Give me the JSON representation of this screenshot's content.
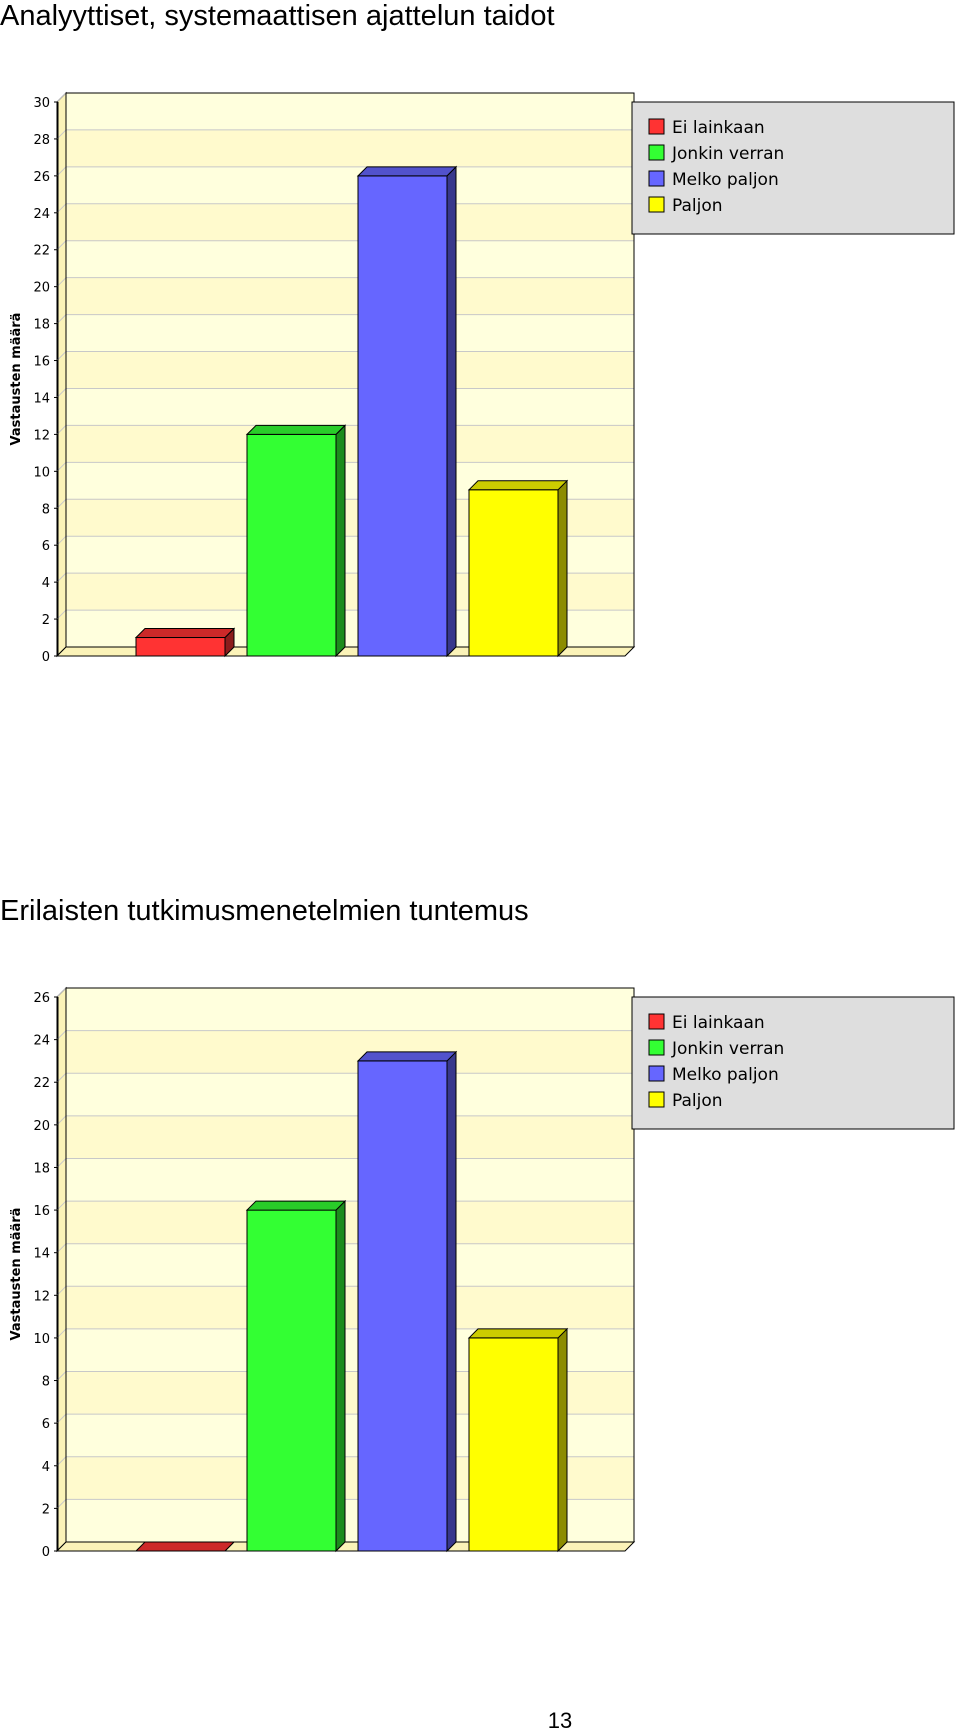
{
  "chart_data": [
    {
      "type": "bar",
      "title": "Analyyttiset, systemaattisen ajattelun taidot",
      "ylabel": "Vastausten määrä",
      "xlabel": "",
      "ylim": [
        0,
        30
      ],
      "yticks": [
        0,
        2,
        4,
        6,
        8,
        10,
        12,
        14,
        16,
        18,
        20,
        22,
        24,
        26,
        28,
        30
      ],
      "grid": true,
      "legend_position": "top-right",
      "series": [
        {
          "name": "Ei lainkaan",
          "value": 1,
          "color": "#ff3333"
        },
        {
          "name": "Jonkin verran",
          "value": 12,
          "color": "#33ff33"
        },
        {
          "name": "Melko paljon",
          "value": 26,
          "color": "#6666ff"
        },
        {
          "name": "Paljon",
          "value": 9,
          "color": "#ffff00"
        }
      ]
    },
    {
      "type": "bar",
      "title": "Erilaisten tutkimusmenetelmien tuntemus",
      "ylabel": "Vastausten määrä",
      "xlabel": "",
      "ylim": [
        0,
        26
      ],
      "yticks": [
        0,
        2,
        4,
        6,
        8,
        10,
        12,
        14,
        16,
        18,
        20,
        22,
        24,
        26
      ],
      "grid": true,
      "legend_position": "top-right",
      "series": [
        {
          "name": "Ei lainkaan",
          "value": 0,
          "color": "#ff3333"
        },
        {
          "name": "Jonkin verran",
          "value": 16,
          "color": "#33ff33"
        },
        {
          "name": "Melko paljon",
          "value": 23,
          "color": "#6666ff"
        },
        {
          "name": "Paljon",
          "value": 10,
          "color": "#ffff00"
        }
      ]
    }
  ],
  "page_number": "13",
  "colors": {
    "plot_band_a": "#ffffdd",
    "plot_band_b": "#fffacd",
    "plot_side": "#fbf3b8",
    "legend_bg": "#dedede",
    "gridline": "#c8c8c8"
  }
}
